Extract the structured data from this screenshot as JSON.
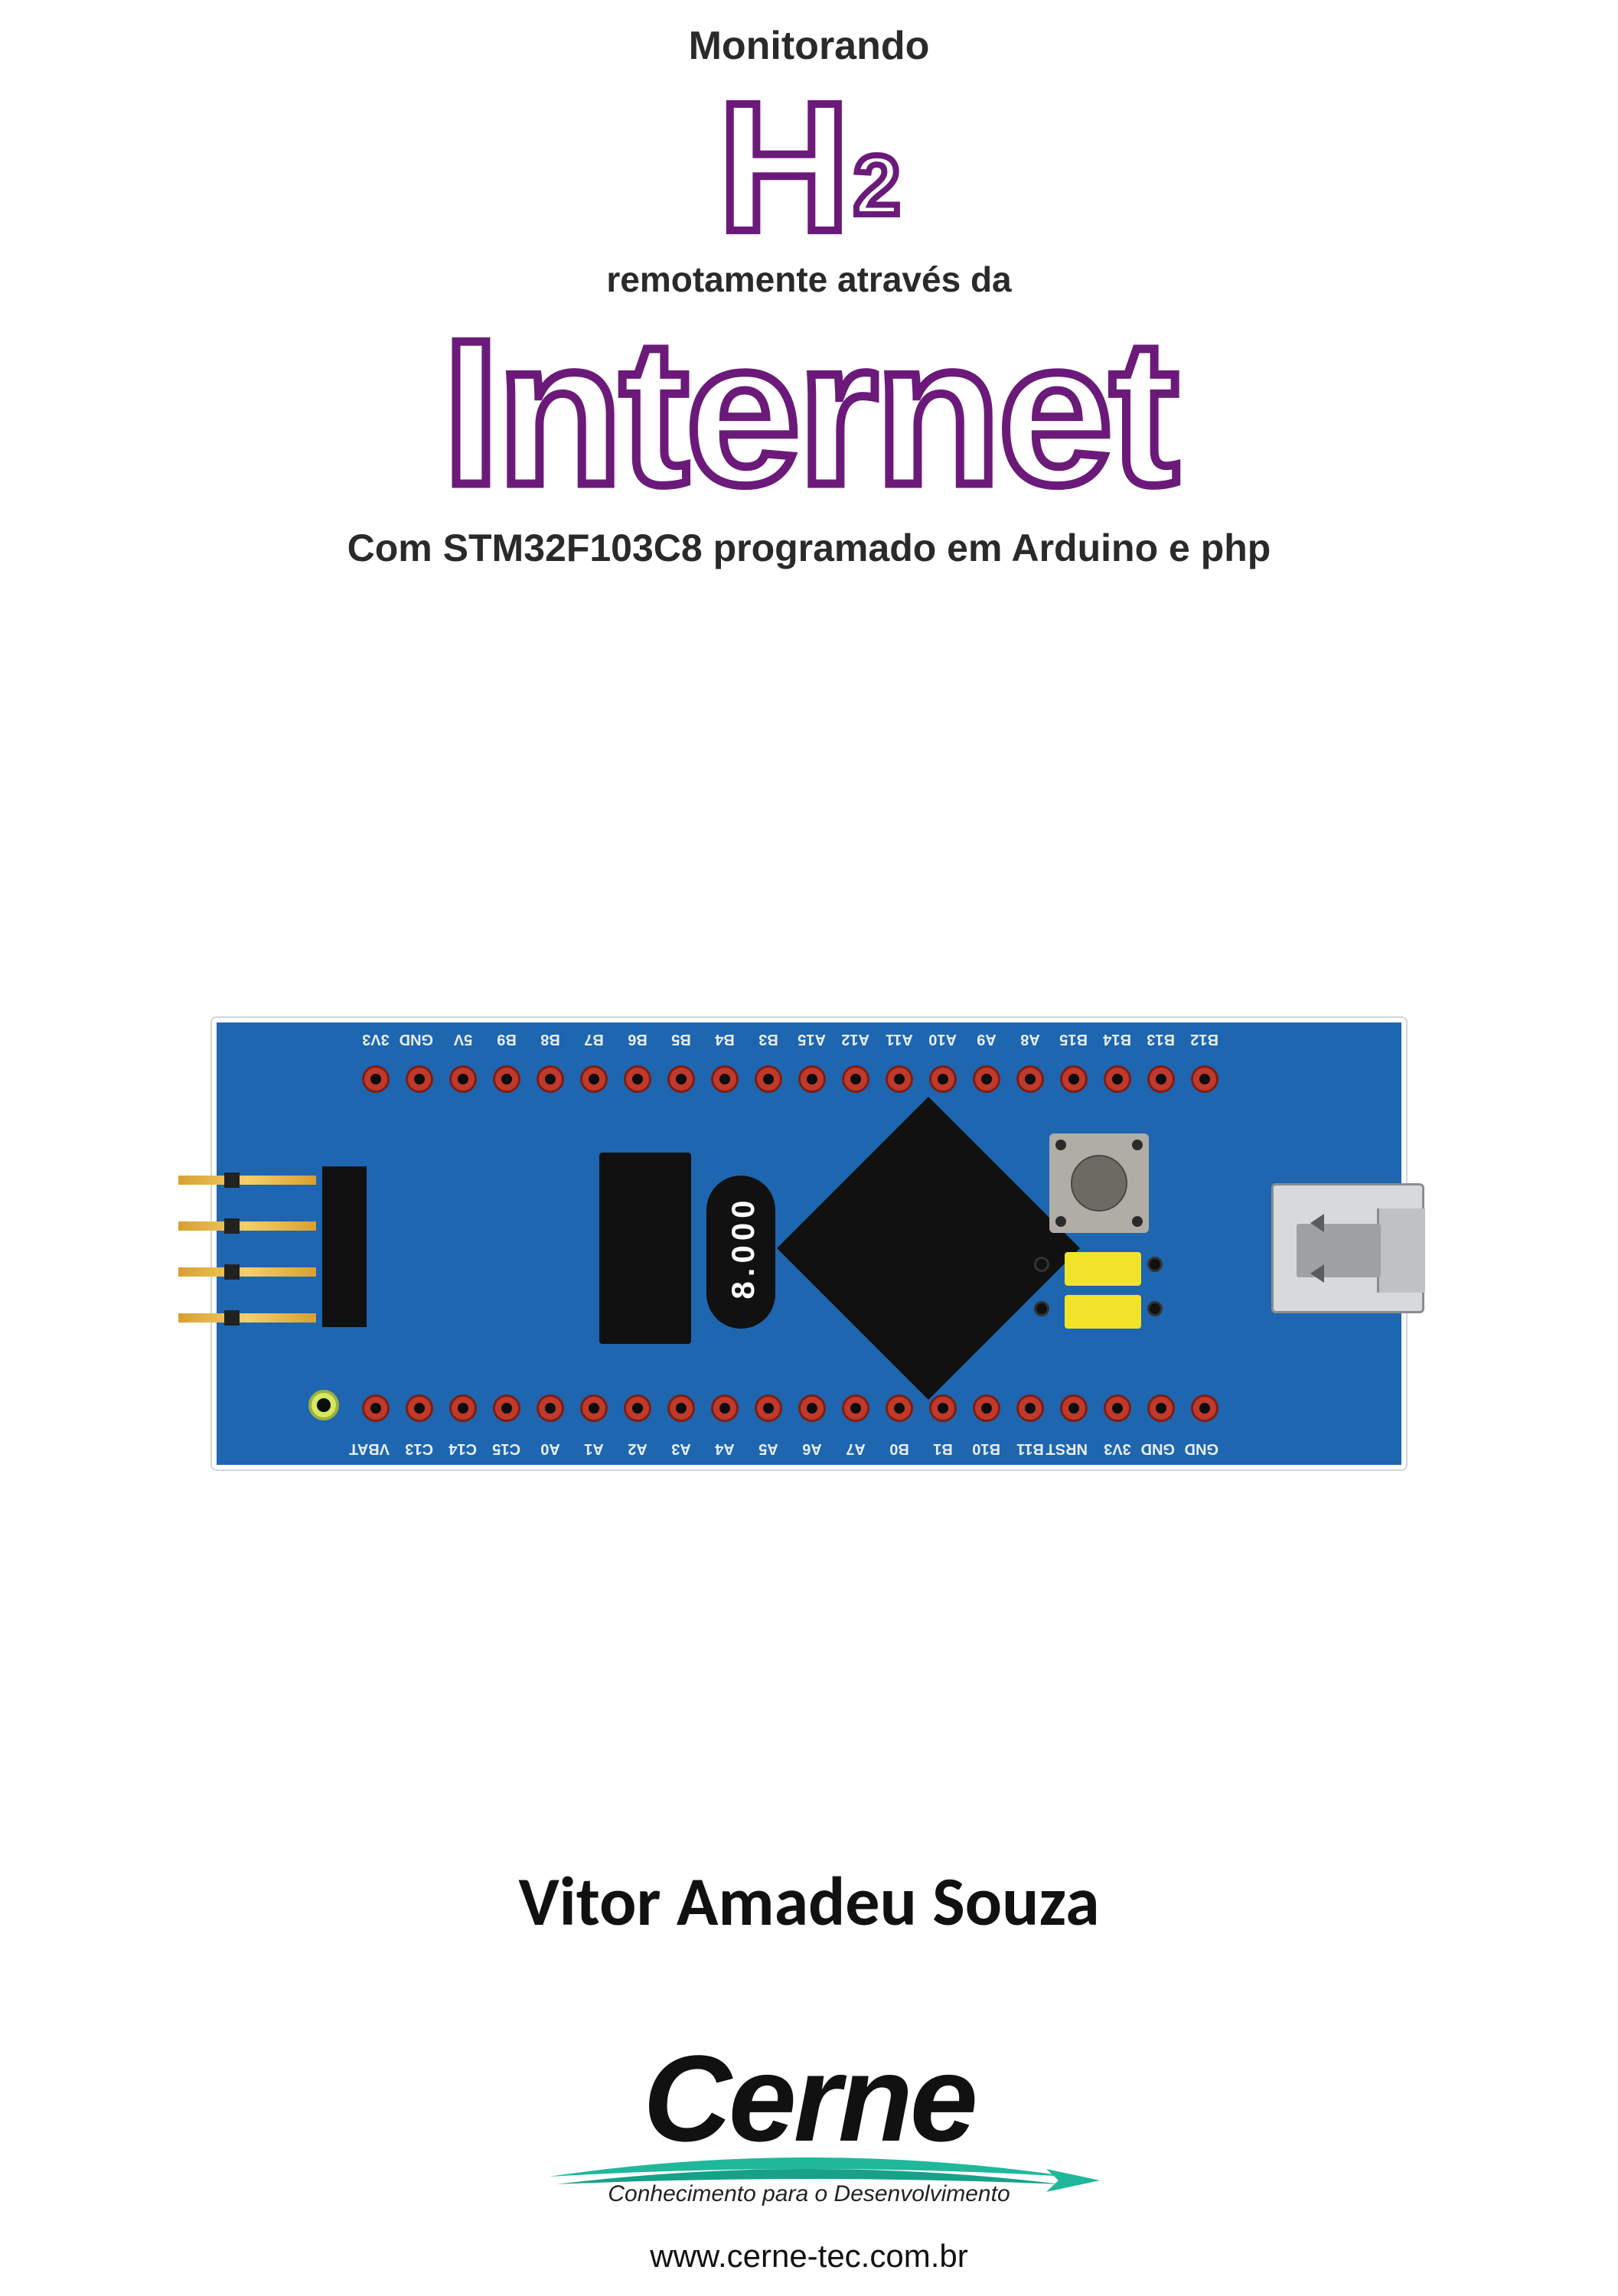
{
  "title": {
    "line1": "Monitorando",
    "formula_main": "H",
    "formula_sub": "2",
    "line2": "remotamente através da",
    "big_word": "Internet",
    "line3": "Com STM32F103C8 programado em Arduino e php",
    "outline_color": "#6b1a7a",
    "text_color": "#2a2a2a"
  },
  "board": {
    "pcb_color": "#1e66b0",
    "pin_color": "#c0392b",
    "crystal_label": "8.000",
    "yellow": "#f1e32a",
    "top_labels": [
      "3V3",
      "GND",
      "5V",
      "B9",
      "B8",
      "B7",
      "B6",
      "B5",
      "B4",
      "B3",
      "A15",
      "A12",
      "A11",
      "A10",
      "A9",
      "A8",
      "B15",
      "B14",
      "B13",
      "B12"
    ],
    "bot_labels": [
      "VBAT",
      "C13",
      "C14",
      "C15",
      "A0",
      "A1",
      "A2",
      "A3",
      "A4",
      "A5",
      "A6",
      "A7",
      "B0",
      "B1",
      "B10",
      "B11",
      "NRST",
      "3V3",
      "GND",
      "GND"
    ]
  },
  "author": "Vitor Amadeu Souza",
  "publisher": {
    "name": "Cerne",
    "tagline": "Conhecimento para o Desenvolvimento",
    "url": "www.cerne-tec.com.br",
    "swoosh_colors": [
      "#1fb89a",
      "#17a188"
    ]
  }
}
